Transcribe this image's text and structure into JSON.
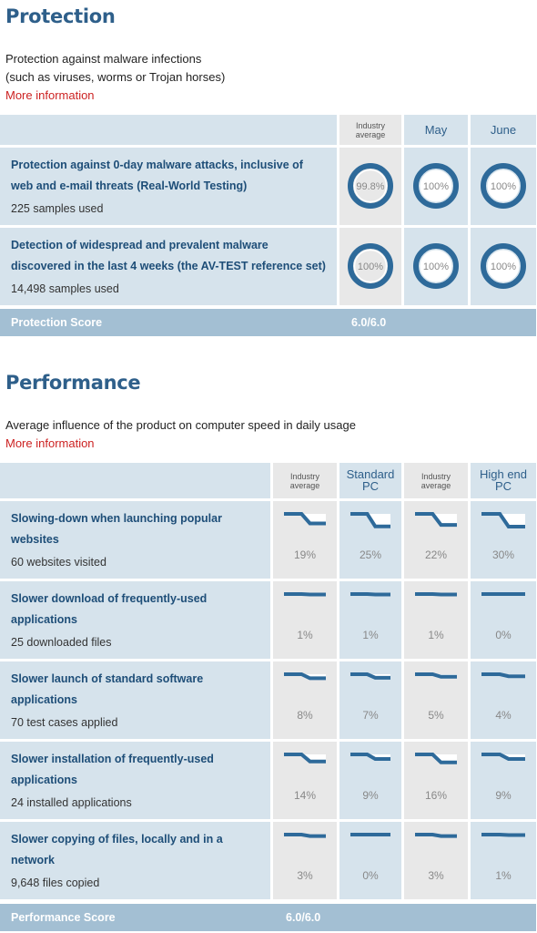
{
  "protection": {
    "heading": "Protection",
    "desc_line1": "Protection against malware infections",
    "desc_line2": "(such as viruses, worms or Trojan horses)",
    "more": "More information",
    "headers": {
      "industry": [
        "Industry",
        "average"
      ],
      "may": "May",
      "june": "June"
    },
    "rows": [
      {
        "title1": "Protection against 0-day malware attacks, inclusive of",
        "title2": "web and e-mail threats (Real-World Testing)",
        "sub": "225 samples used",
        "industry": "99.8%",
        "may": "100%",
        "june": "100%"
      },
      {
        "title1": "Detection of widespread and prevalent malware",
        "title2": "discovered in the last 4 weeks (the AV-TEST reference set)",
        "sub": "14,498 samples used",
        "industry": "100%",
        "may": "100%",
        "june": "100%"
      }
    ],
    "score_label": "Protection Score",
    "score_value": "6.0/6.0"
  },
  "performance": {
    "heading": "Performance",
    "desc": "Average influence of the product on computer speed in daily usage",
    "more": "More information",
    "headers": {
      "ind1": [
        "Industry",
        "average"
      ],
      "std": [
        "Standard",
        "PC"
      ],
      "ind2": [
        "Industry",
        "average"
      ],
      "high": [
        "High end",
        "PC"
      ]
    },
    "rows": [
      {
        "title1": "Slowing-down when launching popular",
        "title2": "websites",
        "sub": "60 websites visited",
        "values": [
          "19%",
          "25%",
          "22%",
          "30%"
        ]
      },
      {
        "title1": "Slower download of frequently-used",
        "title2": "applications",
        "sub": "25 downloaded files",
        "values": [
          "1%",
          "1%",
          "1%",
          "0%"
        ]
      },
      {
        "title1": "Slower launch of standard software",
        "title2": "applications",
        "sub": "70 test cases applied",
        "values": [
          "8%",
          "7%",
          "5%",
          "4%"
        ]
      },
      {
        "title1": "Slower installation of frequently-used",
        "title2": "applications",
        "sub": "24 installed applications",
        "values": [
          "14%",
          "9%",
          "16%",
          "9%"
        ]
      },
      {
        "title1": "Slower copying of files, locally and in a",
        "title2": "network",
        "sub": "9,648 files copied",
        "values": [
          "3%",
          "0%",
          "3%",
          "1%"
        ]
      }
    ],
    "score_label": "Performance Score",
    "score_value": "6.0/6.0"
  },
  "colors": {
    "heading": "#2e5f8a",
    "title": "#1e4e78",
    "link": "#cc2222",
    "row": "#d6e3ec",
    "industry": "#e8e8e8",
    "score_bar": "#a3bfd3",
    "ring": "#2e6a9a"
  }
}
